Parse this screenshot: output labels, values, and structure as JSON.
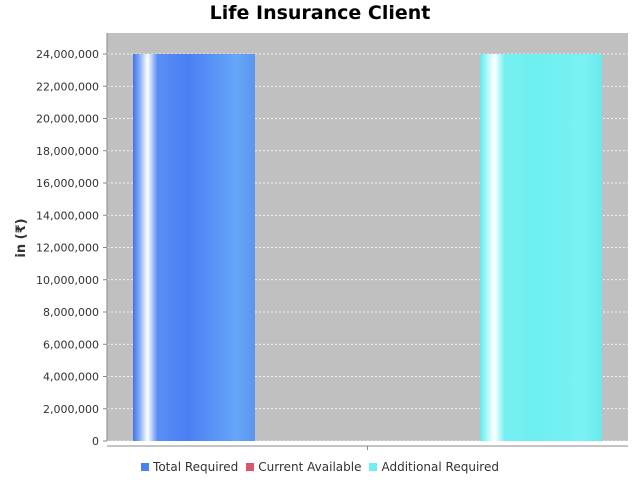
{
  "chart_data": {
    "type": "bar",
    "title": "Life Insurance Client",
    "xlabel": "",
    "ylabel": "in (₹)",
    "ylim": [
      0,
      24000000
    ],
    "yticks": [
      "0",
      "2,000,000",
      "4,000,000",
      "6,000,000",
      "8,000,000",
      "10,000,000",
      "12,000,000",
      "14,000,000",
      "16,000,000",
      "18,000,000",
      "20,000,000",
      "22,000,000",
      "24,000,000"
    ],
    "grid": true,
    "legend_position": "bottom",
    "categories": [
      ""
    ],
    "series": [
      {
        "name": "Total Required",
        "values": [
          24000000
        ],
        "color": "#4b7ff5"
      },
      {
        "name": "Current Available",
        "values": [
          0
        ],
        "color": "#d9566f"
      },
      {
        "name": "Additional Required",
        "values": [
          24000000
        ],
        "color": "#6ff0f0"
      }
    ],
    "plot_background": "#c0c0c0"
  }
}
